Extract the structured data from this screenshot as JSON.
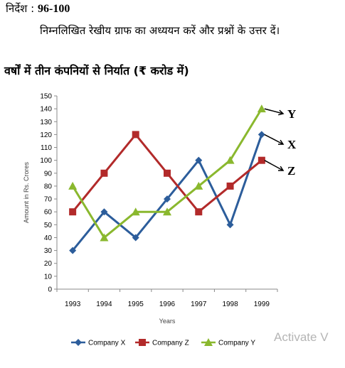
{
  "header": {
    "label": "निर्देश :",
    "range": "96-100"
  },
  "intro": "निम्नलिखित रेखीय ग्राफ का अध्ययन करें और प्रश्नों के उत्तर दें।",
  "chart_title": "वर्षों में तीन कंपनियों से निर्यात (₹ करोड में)",
  "watermark": "Activate V",
  "colors": {
    "company_x": "#2c5d9b",
    "company_z": "#b22a2a",
    "company_y": "#8ab82e"
  },
  "chart_data": {
    "type": "line",
    "title": "",
    "xlabel": "Years",
    "ylabel": "Amount in Rs. Crores",
    "categories": [
      "1993",
      "1994",
      "1995",
      "1996",
      "1997",
      "1998",
      "1999"
    ],
    "ylim": [
      0,
      150
    ],
    "yticks": [
      0,
      10,
      20,
      30,
      40,
      50,
      60,
      70,
      80,
      90,
      100,
      110,
      120,
      130,
      140,
      150
    ],
    "grid": false,
    "legend": "bottom",
    "series": [
      {
        "key": "x",
        "name": "Company X",
        "marker": "diamond",
        "end_label": "X",
        "values": [
          30,
          60,
          40,
          70,
          100,
          50,
          120
        ]
      },
      {
        "key": "z",
        "name": "Company Z",
        "marker": "square",
        "end_label": "Z",
        "values": [
          60,
          90,
          120,
          90,
          60,
          80,
          100
        ]
      },
      {
        "key": "y",
        "name": "Company Y",
        "marker": "triangle",
        "end_label": "Y",
        "values": [
          80,
          40,
          60,
          60,
          80,
          100,
          140
        ]
      }
    ]
  }
}
